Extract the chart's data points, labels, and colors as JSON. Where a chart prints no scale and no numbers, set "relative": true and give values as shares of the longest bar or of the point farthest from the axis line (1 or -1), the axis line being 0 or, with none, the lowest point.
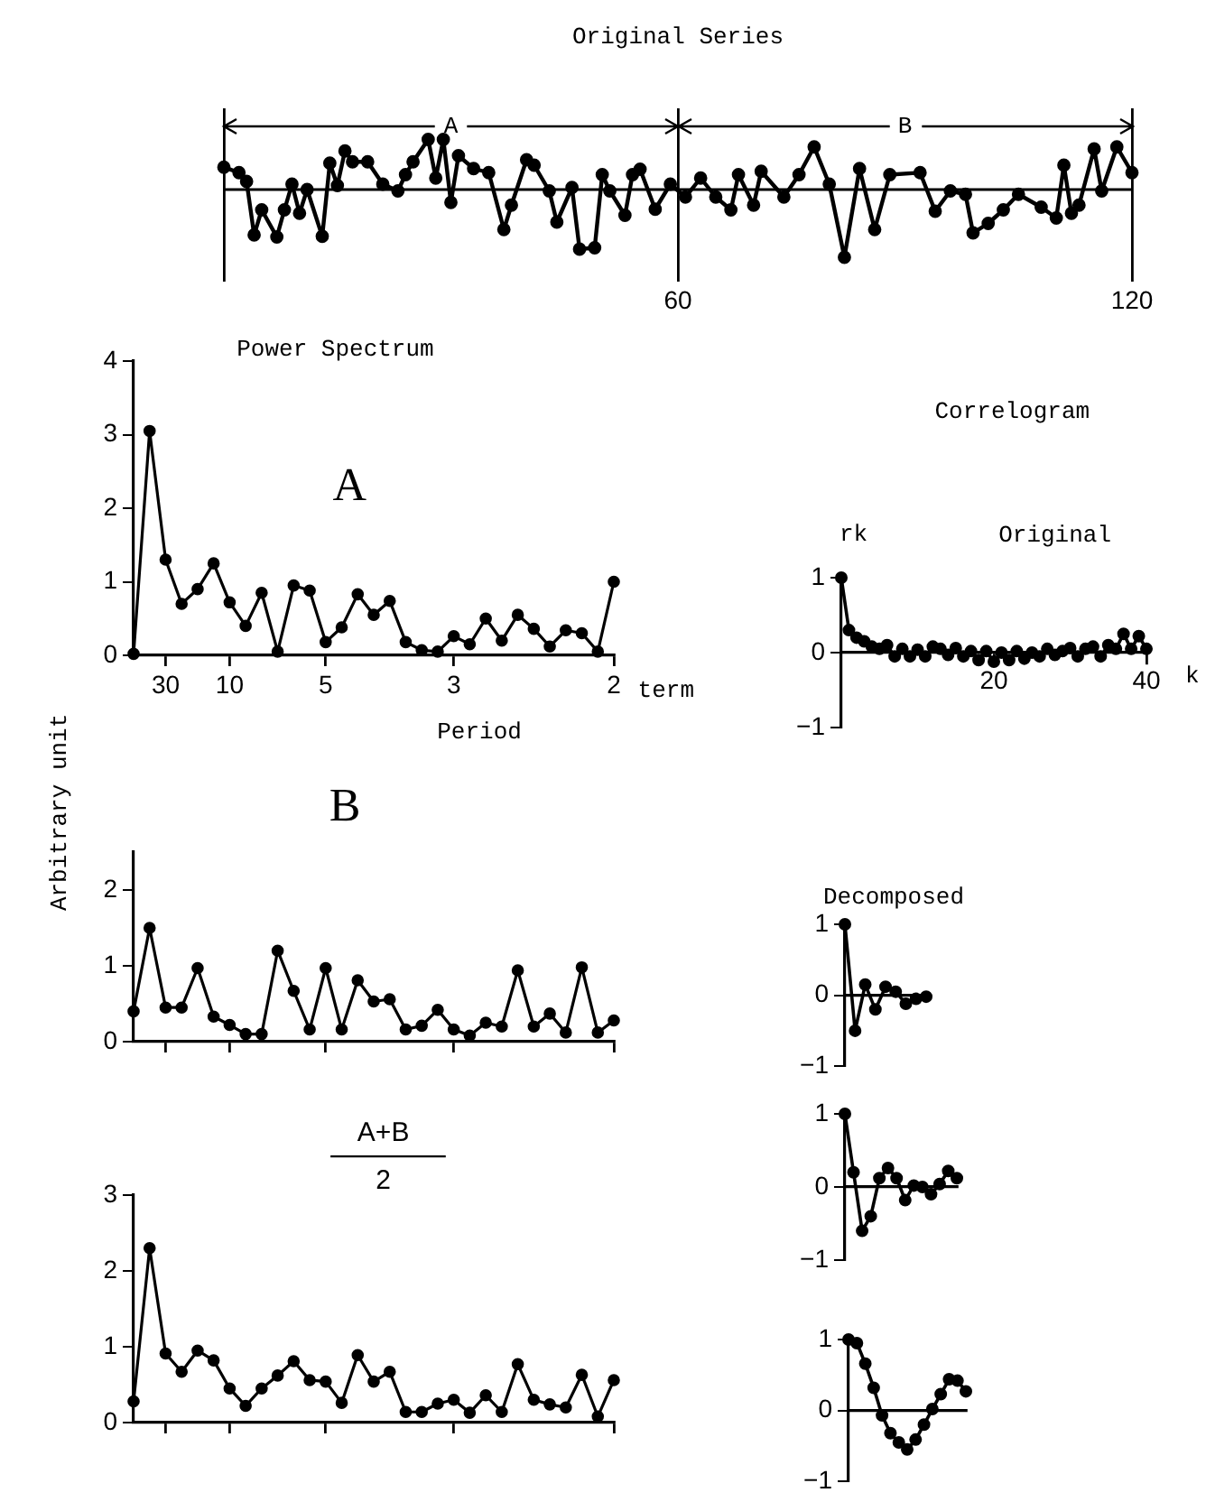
{
  "chart_data": [
    {
      "type": "line",
      "title": "Original Series",
      "relative": true,
      "annotations": [
        "A",
        "B"
      ],
      "xlim": [
        0,
        120
      ],
      "xticks": [
        {
          "value": 0,
          "label": null
        },
        60,
        120
      ],
      "grid": "x",
      "marker": "circle",
      "color": "#000000",
      "x": [
        0,
        2,
        3,
        4,
        5,
        7,
        8,
        9,
        10,
        11,
        13,
        14,
        15,
        16,
        17,
        19,
        21,
        23,
        24,
        25,
        27,
        28,
        29,
        30,
        31,
        33,
        35,
        37,
        38,
        40,
        41,
        43,
        44,
        46,
        47,
        49,
        50,
        51,
        53,
        54,
        55,
        57,
        59,
        61,
        63,
        65,
        67,
        68,
        70,
        71,
        74,
        76,
        78,
        80,
        82,
        84,
        86,
        88,
        92,
        94,
        96,
        98,
        99,
        101,
        103,
        105,
        108,
        110,
        111,
        112,
        113,
        115,
        116,
        118,
        120
      ],
      "values": [
        0.33,
        0.25,
        0.12,
        -0.67,
        -0.3,
        -0.7,
        -0.3,
        0.08,
        -0.35,
        0,
        -0.69,
        0.39,
        0.06,
        0.57,
        0.41,
        0.41,
        0.08,
        -0.02,
        0.22,
        0.41,
        0.74,
        0.17,
        0.74,
        -0.19,
        0.5,
        0.31,
        0.25,
        -0.59,
        -0.23,
        0.44,
        0.36,
        -0.02,
        -0.48,
        0.03,
        -0.88,
        -0.86,
        0.22,
        -0.02,
        -0.38,
        0.22,
        0.3,
        -0.29,
        0.08,
        -0.11,
        0.17,
        -0.11,
        -0.3,
        0.22,
        -0.23,
        0.27,
        -0.11,
        0.22,
        0.63,
        0.08,
        -1,
        0.31,
        -0.59,
        0.22,
        0.25,
        -0.32,
        -0.02,
        -0.07,
        -0.64,
        -0.5,
        -0.3,
        -0.07,
        -0.26,
        -0.42,
        0.36,
        -0.35,
        -0.23,
        0.6,
        -0.02,
        0.63,
        0.25
      ]
    },
    {
      "type": "line",
      "title": "Power Spectrum",
      "xlabel": "Period",
      "annotations": [
        "A",
        "term"
      ],
      "ylim": [
        0,
        4
      ],
      "yticks": [
        0,
        1,
        2,
        3,
        4
      ],
      "marker": "circle",
      "color": "#000000",
      "categories": [
        null,
        null,
        "30",
        null,
        null,
        null,
        "10",
        null,
        null,
        null,
        null,
        null,
        "5",
        null,
        null,
        null,
        null,
        null,
        null,
        null,
        "3",
        null,
        null,
        null,
        null,
        null,
        null,
        null,
        null,
        null,
        "2"
      ],
      "values": [
        0.02,
        3.05,
        1.3,
        0.7,
        0.9,
        1.25,
        0.72,
        0.4,
        0.85,
        0.05,
        0.95,
        0.88,
        0.18,
        0.38,
        0.83,
        0.55,
        0.74,
        0.18,
        0.07,
        0.05,
        0.26,
        0.15,
        0.5,
        0.2,
        0.55,
        0.36,
        0.12,
        0.34,
        0.3,
        0.05,
        1.0
      ]
    },
    {
      "type": "line",
      "title": "Correlogram",
      "subtitle": "Original",
      "xlabel": "k",
      "ylabel": "rk",
      "xlim": [
        0,
        40
      ],
      "xticks": [
        20,
        40
      ],
      "ylim": [
        -1,
        1
      ],
      "yticks": [
        -1,
        0,
        1
      ],
      "marker": "circle",
      "color": "#000000",
      "x": [
        0,
        1,
        2,
        3,
        4,
        5,
        6,
        7,
        8,
        9,
        10,
        11,
        12,
        13,
        14,
        15,
        16,
        17,
        18,
        19,
        20,
        21,
        22,
        23,
        24,
        25,
        26,
        27,
        28,
        29,
        30,
        31,
        32,
        33,
        34,
        35,
        36,
        37,
        38,
        39,
        40
      ],
      "values": [
        1,
        0.3,
        0.2,
        0.15,
        0.08,
        0.05,
        0.1,
        -0.05,
        0.05,
        -0.05,
        0.04,
        -0.05,
        0.08,
        0.05,
        -0.03,
        0.06,
        -0.05,
        0.02,
        -0.1,
        0.02,
        -0.12,
        0,
        -0.1,
        0.02,
        -0.08,
        0,
        -0.05,
        0.05,
        -0.03,
        0.02,
        0.06,
        -0.05,
        0.05,
        0.08,
        -0.05,
        0.1,
        0.05,
        0.25,
        0.05,
        0.22,
        0.05
      ]
    },
    {
      "type": "line",
      "ylabel": "Arbitrary unit",
      "annotations": [
        "B"
      ],
      "tick_labels": "y",
      "ylim": [
        0,
        2.5
      ],
      "yticks": [
        0,
        1,
        2
      ],
      "marker": "circle",
      "color": "#000000",
      "categories": [
        null,
        null,
        "30",
        null,
        null,
        null,
        "10",
        null,
        null,
        null,
        null,
        null,
        "5",
        null,
        null,
        null,
        null,
        null,
        null,
        null,
        "3",
        null,
        null,
        null,
        null,
        null,
        null,
        null,
        null,
        null,
        "2"
      ],
      "values": [
        0.4,
        1.5,
        0.45,
        0.45,
        0.97,
        0.33,
        0.22,
        0.1,
        0.1,
        1.2,
        0.67,
        0.16,
        0.97,
        0.16,
        0.81,
        0.53,
        0.56,
        0.16,
        0.21,
        0.42,
        0.16,
        0.08,
        0.25,
        0.2,
        0.94,
        0.2,
        0.37,
        0.12,
        0.98,
        0.12,
        0.28
      ]
    },
    {
      "type": "line",
      "title": "Decomposed",
      "tick_labels": "y",
      "ylim": [
        -1,
        1
      ],
      "yticks": [
        -1,
        0,
        1
      ],
      "marker": "circle",
      "color": "#000000",
      "categories": [
        null,
        null,
        null,
        null,
        null,
        null,
        null,
        null,
        null
      ],
      "values": [
        1,
        -0.5,
        0.15,
        -0.2,
        0.12,
        0.05,
        -0.12,
        -0.05,
        -0.02
      ]
    },
    {
      "type": "line",
      "tick_labels": "y",
      "ylim": [
        -1,
        1
      ],
      "yticks": [
        -1,
        0,
        1
      ],
      "marker": "circle",
      "color": "#000000",
      "categories": [
        null,
        null,
        null,
        null,
        null,
        null,
        null,
        null,
        null,
        null,
        null,
        null,
        null,
        null
      ],
      "values": [
        1,
        0.2,
        -0.6,
        -0.4,
        0.12,
        0.26,
        0.12,
        -0.18,
        0.02,
        0,
        -0.1,
        0.04,
        0.22,
        0.12
      ]
    },
    {
      "type": "line",
      "annotations": [
        "A+B",
        "2"
      ],
      "tick_labels": "y",
      "ylim": [
        0,
        3
      ],
      "yticks": [
        0,
        1,
        2,
        3
      ],
      "marker": "circle",
      "color": "#000000",
      "categories": [
        null,
        null,
        "30",
        null,
        null,
        null,
        "10",
        null,
        null,
        null,
        null,
        null,
        "5",
        null,
        null,
        null,
        null,
        null,
        null,
        null,
        "3",
        null,
        null,
        null,
        null,
        null,
        null,
        null,
        null,
        null,
        "2"
      ],
      "values": [
        0.28,
        2.3,
        0.91,
        0.67,
        0.95,
        0.82,
        0.45,
        0.22,
        0.45,
        0.62,
        0.81,
        0.56,
        0.54,
        0.26,
        0.89,
        0.54,
        0.67,
        0.14,
        0.14,
        0.25,
        0.3,
        0.13,
        0.36,
        0.14,
        0.77,
        0.3,
        0.24,
        0.2,
        0.63,
        0.08,
        0.56
      ]
    },
    {
      "type": "line",
      "tick_labels": "y",
      "ylim": [
        -1,
        1
      ],
      "yticks": [
        -1,
        0,
        1
      ],
      "marker": "circle",
      "color": "#000000",
      "categories": [
        null,
        null,
        null,
        null,
        null,
        null,
        null,
        null,
        null,
        null,
        null,
        null,
        null,
        null,
        null
      ],
      "values": [
        1,
        0.95,
        0.66,
        0.32,
        -0.07,
        -0.32,
        -0.45,
        -0.55,
        -0.41,
        -0.2,
        0.02,
        0.23,
        0.44,
        0.42,
        0.27
      ]
    }
  ]
}
